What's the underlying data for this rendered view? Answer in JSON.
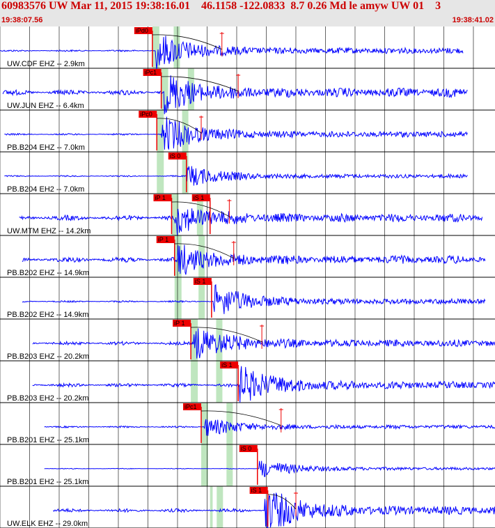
{
  "header": {
    "title": "60983576 UW Mar 11, 2015 19:38:16.01    46.1158 -122.0833  8.7 0.26 Md le amyw UW 01    3",
    "time_start": "19:38:07.56",
    "time_end": "19:38:41.02"
  },
  "colors": {
    "trace": "#0000ff",
    "pick": "#ee0000",
    "window": "#bfe6bf",
    "header_bg": "#e6e6e6",
    "title": "#cc0000"
  },
  "chart_data": {
    "type": "line",
    "title": "60983576 UW Mar 11, 2015 19:38:16.01    46.1158 -122.0833  8.7 0.26 Md le amyw UW 01    3",
    "x_range": [
      "19:38:07.56",
      "19:38:41.02"
    ],
    "x_range_seconds": [
      0,
      33.46
    ],
    "grid": true,
    "series": [
      {
        "label": "UW.CDF EHZ -- 2.9km",
        "pick_labels": [
          "iPd0"
        ],
        "picks_s": [
          10.3
        ],
        "window_s": [
          10.3,
          11.9
        ],
        "onset_s": 10.5,
        "end_s": 31.3,
        "start_s": 0.0,
        "noise": 0.1,
        "burst": 1.0,
        "coda_pick_s": 15.0
      },
      {
        "label": "UW.JUN EHZ -- 6.4km",
        "pick_labels": [
          "iPc1"
        ],
        "picks_s": [
          10.9
        ],
        "window_s": [
          10.9,
          12.9
        ],
        "onset_s": 11.1,
        "end_s": 31.6,
        "start_s": 0.2,
        "noise": 0.3,
        "burst": 1.0,
        "coda_pick_s": 16.1
      },
      {
        "label": "PB.B204 EHZ -- 7.0km",
        "pick_labels": [
          "iPc0"
        ],
        "picks_s": [
          10.6
        ],
        "window_s": [
          10.6,
          12.5
        ],
        "onset_s": 10.9,
        "end_s": 31.6,
        "start_s": 0.3,
        "noise": 0.1,
        "burst": 1.0,
        "coda_pick_s": 13.6
      },
      {
        "label": "PB.B204 EH2 -- 7.0km",
        "pick_labels": [
          "iS 0"
        ],
        "picks_s": [
          12.6
        ],
        "window_s": [
          10.6,
          12.5
        ],
        "onset_s": 12.6,
        "end_s": 31.6,
        "start_s": 0.3,
        "noise": 0.08,
        "burst": 0.6,
        "coda_pick_s": null
      },
      {
        "label": "UW.MTM EHZ -- 14.2km",
        "pick_labels": [
          "iP 1",
          "iS 1"
        ],
        "picks_s": [
          11.6,
          14.2
        ],
        "window_s": [
          11.6,
          13.5
        ],
        "onset_s": 11.8,
        "end_s": 32.6,
        "start_s": 1.3,
        "noise": 0.3,
        "burst": 0.8,
        "coda_pick_s": 15.5
      },
      {
        "label": "PB.B202 EHZ -- 14.9km",
        "pick_labels": [
          "iP 1"
        ],
        "picks_s": [
          11.8
        ],
        "window_s": [
          11.8,
          13.6
        ],
        "onset_s": 12.0,
        "end_s": 32.8,
        "start_s": 1.5,
        "noise": 0.3,
        "burst": 0.8,
        "coda_pick_s": 15.8
      },
      {
        "label": "PB.B202 EH2 -- 14.9km",
        "pick_labels": [
          "iS 1"
        ],
        "picks_s": [
          14.3
        ],
        "window_s": [
          11.8,
          13.6
        ],
        "onset_s": 14.4,
        "end_s": 32.8,
        "start_s": 1.5,
        "noise": 0.1,
        "burst": 0.9,
        "coda_pick_s": null
      },
      {
        "label": "PB.B203 EHZ -- 20.2km",
        "pick_labels": [
          "iP 1"
        ],
        "picks_s": [
          12.9
        ],
        "window_s": [
          12.9,
          14.8
        ],
        "onset_s": 13.1,
        "end_s": 33.5,
        "start_s": 2.2,
        "noise": 0.2,
        "burst": 0.9,
        "coda_pick_s": 17.7
      },
      {
        "label": "PB.B203 EH2 -- 20.2km",
        "pick_labels": [
          "iS 1"
        ],
        "picks_s": [
          16.1
        ],
        "window_s": [
          12.9,
          14.8
        ],
        "onset_s": 16.2,
        "end_s": 33.5,
        "start_s": 2.2,
        "noise": 0.2,
        "burst": 1.0,
        "coda_pick_s": null
      },
      {
        "label": "PB.B201 EHZ -- 25.1km",
        "pick_labels": [
          "iPc1"
        ],
        "picks_s": [
          13.6
        ],
        "window_s": [
          13.6,
          15.5
        ],
        "onset_s": 13.8,
        "end_s": 34.0,
        "start_s": 3.0,
        "noise": 0.1,
        "burst": 0.5,
        "coda_pick_s": 19.0
      },
      {
        "label": "PB.B201 EH2 -- 25.1km",
        "pick_labels": [
          "iS 0"
        ],
        "picks_s": [
          17.4
        ],
        "window_s": [
          13.6,
          15.5
        ],
        "onset_s": 17.5,
        "end_s": 34.0,
        "start_s": 3.0,
        "noise": 0.04,
        "burst": 0.5,
        "coda_pick_s": null
      },
      {
        "label": "UW.ELK EHZ -- 29.0km",
        "pick_labels": [
          "iS 1"
        ],
        "picks_s": [
          18.1
        ],
        "window_s": [
          14.2,
          14.7
        ],
        "onset_s": 17.9,
        "end_s": 34.0,
        "start_s": 3.6,
        "noise": 0.2,
        "burst": 1.2,
        "coda_pick_s": 20.0
      }
    ]
  }
}
